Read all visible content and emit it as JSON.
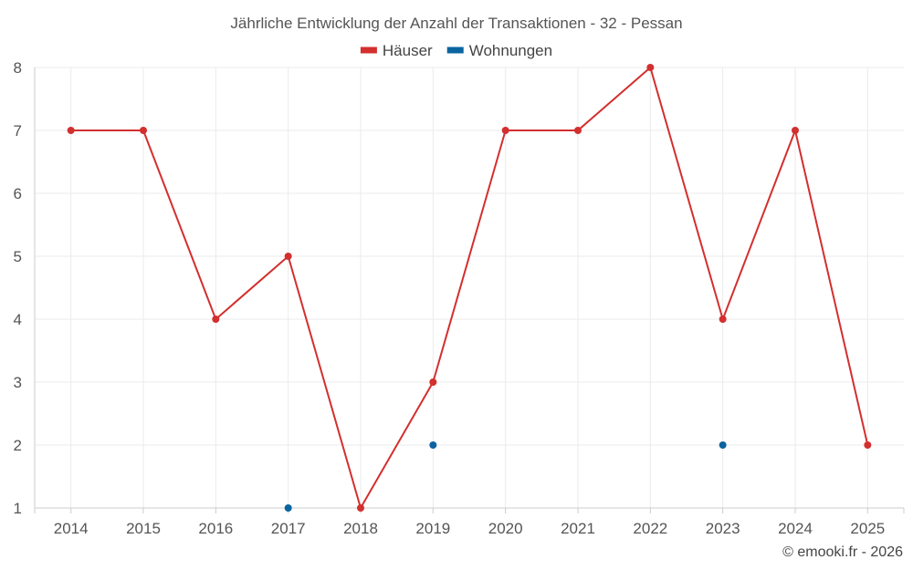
{
  "chart_data": {
    "type": "line",
    "title": "Jährliche Entwicklung der Anzahl der Transaktionen - 32 - Pessan",
    "categories": [
      "2014",
      "2015",
      "2016",
      "2017",
      "2018",
      "2019",
      "2020",
      "2021",
      "2022",
      "2023",
      "2024",
      "2025"
    ],
    "ylim": [
      1,
      8
    ],
    "yticks": [
      1,
      2,
      3,
      4,
      5,
      6,
      7,
      8
    ],
    "grid": true,
    "legend_position": "top-center",
    "series": [
      {
        "name": "Häuser",
        "color": "#d32f2f",
        "values": [
          7,
          7,
          4,
          5,
          1,
          3,
          7,
          7,
          8,
          4,
          7,
          2
        ],
        "line": true
      },
      {
        "name": "Wohnungen",
        "color": "#0b64a0",
        "values": [
          null,
          null,
          null,
          1,
          null,
          2,
          null,
          null,
          null,
          2,
          null,
          null
        ],
        "line": false
      }
    ]
  },
  "credit": "© emooki.fr - 2026"
}
